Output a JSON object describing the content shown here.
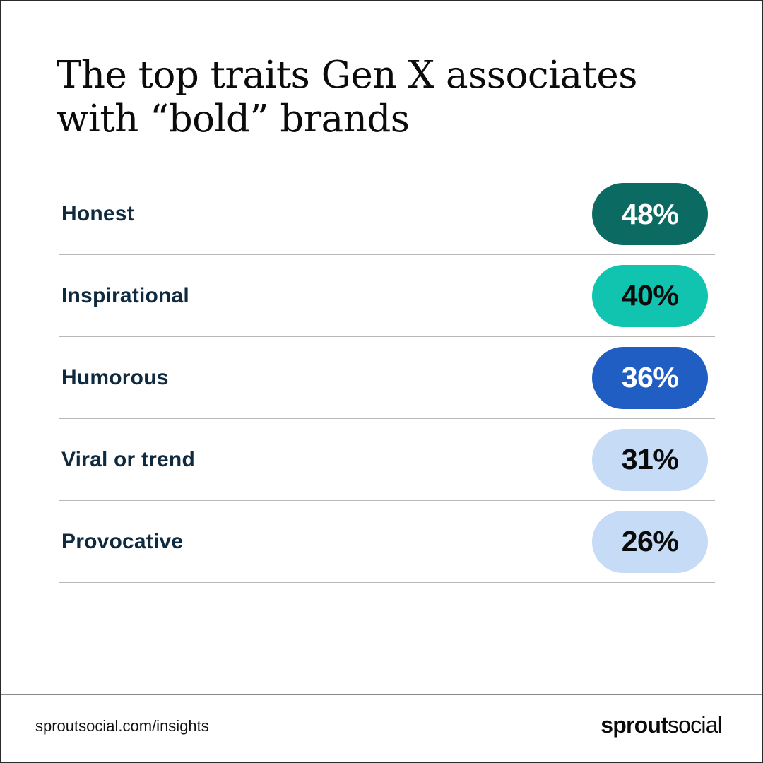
{
  "title": {
    "line1": "The top traits Gen X associates",
    "line2": "with “bold” brands"
  },
  "rows": [
    {
      "label": "Honest",
      "value": "48%",
      "bg": "#0b6b62",
      "fg": "#ffffff"
    },
    {
      "label": "Inspirational",
      "value": "40%",
      "bg": "#10c4b0",
      "fg": "#0b0b0b"
    },
    {
      "label": "Humorous",
      "value": "36%",
      "bg": "#205ec4",
      "fg": "#ffffff"
    },
    {
      "label": "Viral or trend",
      "value": "31%",
      "bg": "#c6dbf5",
      "fg": "#0b0b0b"
    },
    {
      "label": "Provocative",
      "value": "26%",
      "bg": "#c6dbf5",
      "fg": "#0b0b0b"
    }
  ],
  "footer": {
    "url": "sproutsocial.com/insights",
    "logo_bold": "sprout",
    "logo_light": "social"
  },
  "chart_data": {
    "type": "table",
    "title": "The top traits Gen X associates with “bold” brands",
    "categories": [
      "Honest",
      "Inspirational",
      "Humorous",
      "Viral or trend",
      "Provocative"
    ],
    "values": [
      48,
      40,
      36,
      31,
      26
    ],
    "unit": "%",
    "colors": [
      "#0b6b62",
      "#10c4b0",
      "#205ec4",
      "#c6dbf5",
      "#c6dbf5"
    ],
    "xlabel": "",
    "ylabel": ""
  }
}
